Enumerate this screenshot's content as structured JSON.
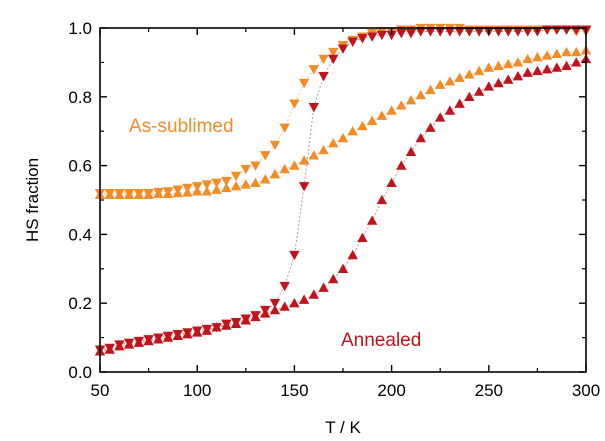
{
  "chart_data": {
    "type": "scatter",
    "xlabel": "T / K",
    "ylabel": "HS fraction",
    "xlim": [
      50,
      300
    ],
    "ylim": [
      0.0,
      1.0
    ],
    "xticks": [
      50,
      100,
      150,
      200,
      250,
      300
    ],
    "yticks": [
      0.0,
      0.2,
      0.4,
      0.6,
      0.8,
      1.0
    ],
    "grid": false,
    "legend": "none",
    "annotations": [
      {
        "text": "As-sublimed",
        "color": "#f28c28"
      },
      {
        "text": "Annealed",
        "color": "#c0141c"
      }
    ],
    "series": [
      {
        "group": "As-sublimed",
        "marker": "triangle-down",
        "color": "#f28c28",
        "x": [
          50,
          55,
          60,
          65,
          70,
          75,
          80,
          85,
          90,
          95,
          100,
          105,
          110,
          115,
          120,
          125,
          130,
          135,
          140,
          145,
          150,
          155,
          160,
          165,
          170,
          175,
          180,
          185,
          190,
          195,
          200,
          205,
          210,
          215,
          220,
          225,
          230,
          235,
          240,
          245,
          250,
          255,
          260,
          265,
          270,
          275,
          280,
          285,
          290,
          295,
          300
        ],
        "y": [
          0.52,
          0.52,
          0.52,
          0.52,
          0.52,
          0.52,
          0.523,
          0.525,
          0.53,
          0.535,
          0.54,
          0.545,
          0.55,
          0.555,
          0.57,
          0.59,
          0.6,
          0.63,
          0.66,
          0.71,
          0.78,
          0.84,
          0.88,
          0.91,
          0.93,
          0.95,
          0.965,
          0.975,
          0.985,
          0.99,
          0.99,
          0.995,
          0.995,
          1.0,
          1.0,
          1.0,
          1.0,
          1.0,
          0.995,
          0.995,
          0.995,
          0.995,
          0.995,
          0.995,
          0.995,
          0.995,
          0.995,
          0.995,
          0.995,
          0.99,
          0.99
        ]
      },
      {
        "group": "As-sublimed",
        "marker": "triangle-up",
        "color": "#f28c28",
        "x": [
          50,
          55,
          60,
          65,
          70,
          75,
          80,
          85,
          90,
          95,
          100,
          105,
          110,
          115,
          120,
          125,
          130,
          135,
          140,
          145,
          150,
          155,
          160,
          165,
          170,
          175,
          180,
          185,
          190,
          195,
          200,
          205,
          210,
          215,
          220,
          225,
          230,
          235,
          240,
          245,
          250,
          255,
          260,
          265,
          270,
          275,
          280,
          285,
          290,
          295,
          300
        ],
        "y": [
          0.515,
          0.515,
          0.515,
          0.515,
          0.515,
          0.515,
          0.518,
          0.518,
          0.52,
          0.522,
          0.525,
          0.525,
          0.53,
          0.535,
          0.54,
          0.545,
          0.55,
          0.56,
          0.575,
          0.59,
          0.6,
          0.615,
          0.63,
          0.645,
          0.665,
          0.68,
          0.7,
          0.715,
          0.73,
          0.745,
          0.76,
          0.775,
          0.79,
          0.805,
          0.82,
          0.835,
          0.845,
          0.855,
          0.865,
          0.875,
          0.885,
          0.89,
          0.895,
          0.9,
          0.91,
          0.915,
          0.92,
          0.925,
          0.93,
          0.93,
          0.935
        ]
      },
      {
        "group": "Annealed",
        "marker": "triangle-down",
        "color": "#c0141c",
        "x": [
          50,
          55,
          60,
          65,
          70,
          75,
          80,
          85,
          90,
          95,
          100,
          105,
          110,
          115,
          120,
          125,
          130,
          135,
          140,
          145,
          150,
          155,
          160,
          165,
          170,
          175,
          180,
          185,
          190,
          195,
          200,
          205,
          210,
          215,
          220,
          225,
          230,
          235,
          240,
          245,
          250,
          255,
          260,
          265,
          270,
          275,
          280,
          285,
          290,
          295,
          300
        ],
        "y": [
          0.065,
          0.07,
          0.08,
          0.085,
          0.09,
          0.095,
          0.1,
          0.105,
          0.11,
          0.115,
          0.12,
          0.125,
          0.13,
          0.14,
          0.145,
          0.155,
          0.165,
          0.18,
          0.2,
          0.25,
          0.34,
          0.54,
          0.77,
          0.86,
          0.91,
          0.94,
          0.96,
          0.97,
          0.975,
          0.98,
          0.98,
          0.985,
          0.985,
          0.99,
          0.99,
          0.99,
          0.99,
          0.99,
          0.99,
          0.99,
          0.99,
          0.99,
          0.99,
          0.99,
          0.99,
          0.99,
          0.995,
          0.995,
          0.995,
          0.995,
          0.995
        ]
      },
      {
        "group": "Annealed",
        "marker": "triangle-up",
        "color": "#c0141c",
        "x": [
          50,
          55,
          60,
          65,
          70,
          75,
          80,
          85,
          90,
          95,
          100,
          105,
          110,
          115,
          120,
          125,
          130,
          135,
          140,
          145,
          150,
          155,
          160,
          165,
          170,
          175,
          180,
          185,
          190,
          195,
          200,
          205,
          210,
          215,
          220,
          225,
          230,
          235,
          240,
          245,
          250,
          255,
          260,
          265,
          270,
          275,
          280,
          285,
          290,
          295,
          300
        ],
        "y": [
          0.06,
          0.065,
          0.075,
          0.08,
          0.085,
          0.09,
          0.095,
          0.1,
          0.105,
          0.11,
          0.115,
          0.12,
          0.13,
          0.135,
          0.14,
          0.15,
          0.16,
          0.17,
          0.18,
          0.19,
          0.2,
          0.21,
          0.225,
          0.245,
          0.27,
          0.3,
          0.34,
          0.39,
          0.44,
          0.5,
          0.55,
          0.6,
          0.64,
          0.68,
          0.71,
          0.74,
          0.76,
          0.78,
          0.8,
          0.815,
          0.83,
          0.84,
          0.85,
          0.86,
          0.87,
          0.875,
          0.88,
          0.885,
          0.89,
          0.9,
          0.91
        ]
      }
    ]
  }
}
